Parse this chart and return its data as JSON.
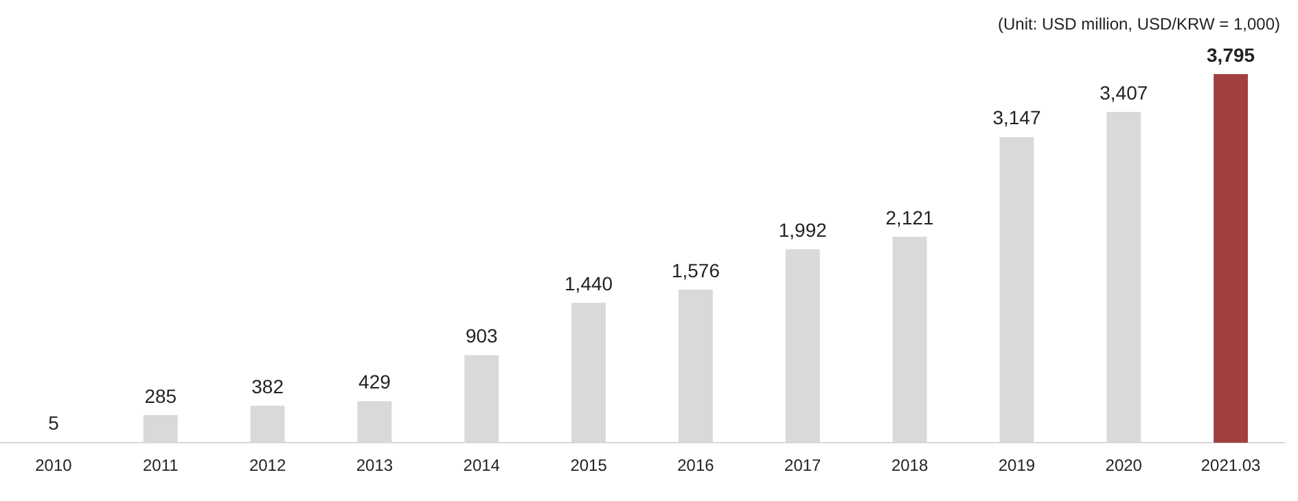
{
  "chart_data": {
    "type": "bar",
    "categories": [
      "2010",
      "2011",
      "2012",
      "2013",
      "2014",
      "2015",
      "2016",
      "2017",
      "2018",
      "2019",
      "2020",
      "2021.03"
    ],
    "values": [
      5,
      285,
      382,
      429,
      903,
      1440,
      1576,
      1992,
      2121,
      3147,
      3407,
      3795
    ],
    "colors": [
      "#d9d9d9",
      "#d9d9d9",
      "#d9d9d9",
      "#d9d9d9",
      "#d9d9d9",
      "#d9d9d9",
      "#d9d9d9",
      "#d9d9d9",
      "#d9d9d9",
      "#d9d9d9",
      "#d9d9d9",
      "#a04040"
    ],
    "value_labels": [
      "5",
      "285",
      "382",
      "429",
      "903",
      "1,440",
      "1,576",
      "1,992",
      "2,121",
      "3,147",
      "3,407",
      "3,795"
    ],
    "annotations": [
      "(Unit: USD million, USD/KRW = 1,000)"
    ],
    "grid": false,
    "legend": false
  }
}
